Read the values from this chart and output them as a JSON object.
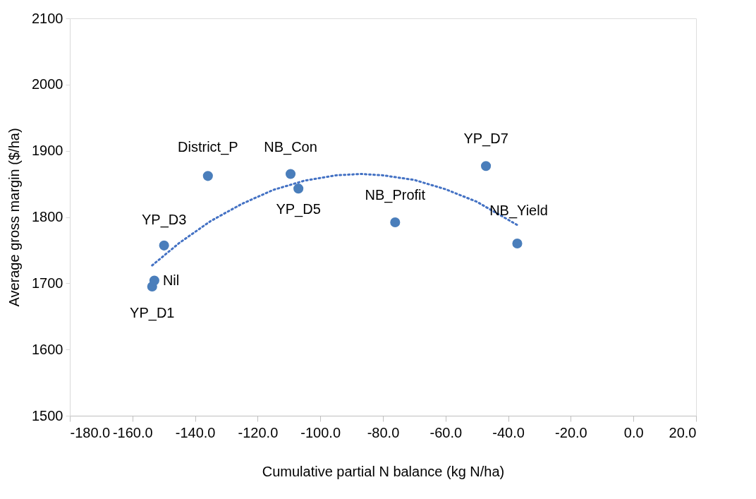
{
  "chart_data": {
    "type": "scatter",
    "xlabel": "Cumulative partial N balance (kg N/ha)",
    "ylabel": "Average gross margin ($/ha)",
    "xlim": [
      -180,
      20
    ],
    "ylim": [
      1500,
      2100
    ],
    "xticks": [
      {
        "value": -180,
        "label": "-180.0"
      },
      {
        "value": -160,
        "label": "-160.0"
      },
      {
        "value": -140,
        "label": "-140.0"
      },
      {
        "value": -120,
        "label": "-120.0"
      },
      {
        "value": -100,
        "label": "-100.0"
      },
      {
        "value": -80,
        "label": "-80.0"
      },
      {
        "value": -60,
        "label": "-60.0"
      },
      {
        "value": -40,
        "label": "-40.0"
      },
      {
        "value": -20,
        "label": "-20.0"
      },
      {
        "value": 0,
        "label": "0.0"
      },
      {
        "value": 20,
        "label": "20.0"
      }
    ],
    "yticks": [
      1500,
      1600,
      1700,
      1800,
      1900,
      2000,
      2100
    ],
    "grid": false,
    "series": [
      {
        "marker": "circle",
        "color": "#4a7ebb",
        "x": [
          -153.7,
          -153.0,
          -149.9,
          -135.9,
          -109.5,
          -107.0,
          -76.1,
          -47.1,
          -37.1
        ],
        "values": [
          1695,
          1704,
          1757,
          1862,
          1865,
          1843,
          1792,
          1877,
          1760
        ]
      },
      {
        "type": "line",
        "marker": "none",
        "line_style": "dotted",
        "color": "#4472c4",
        "x": [
          -153.7,
          -145,
          -135,
          -125,
          -115,
          -105,
          -95,
          -87,
          -80,
          -70,
          -60,
          -50,
          -37.1
        ],
        "values": [
          1727,
          1761,
          1794,
          1820,
          1841,
          1855,
          1863,
          1865,
          1863,
          1856,
          1842,
          1823,
          1788
        ]
      }
    ],
    "annotations": [
      {
        "text": "YP_D1",
        "x": -153.7,
        "y": 1695
      },
      {
        "text": "Nil",
        "x": -153.0,
        "y": 1704
      },
      {
        "text": "YP_D3",
        "x": -149.9,
        "y": 1757
      },
      {
        "text": "District_P",
        "x": -135.9,
        "y": 1862
      },
      {
        "text": "NB_Con",
        "x": -109.5,
        "y": 1865
      },
      {
        "text": "YP_D5",
        "x": -107.0,
        "y": 1843
      },
      {
        "text": "NB_Profit",
        "x": -76.1,
        "y": 1792
      },
      {
        "text": "YP_D7",
        "x": -47.1,
        "y": 1877
      },
      {
        "text": "NB_Yield",
        "x": -37.1,
        "y": 1760
      }
    ]
  }
}
